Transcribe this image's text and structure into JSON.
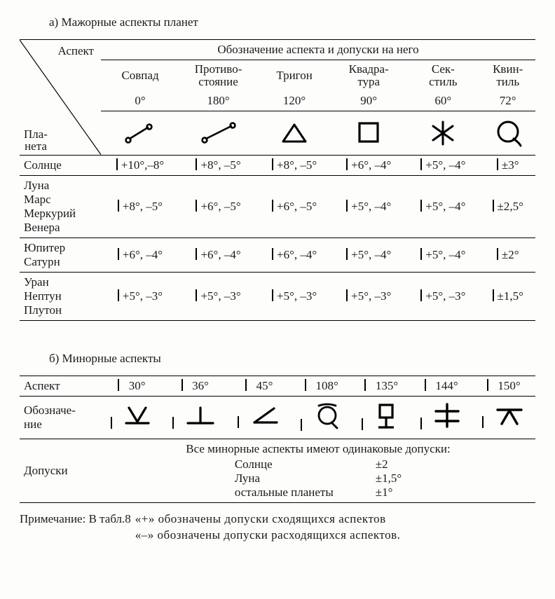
{
  "titles": {
    "a": "а)  Мажорные аспекты планет",
    "b": "б)  Минорные аспекты"
  },
  "major": {
    "corner_top": "Аспект",
    "corner_bottom": "Пла-\nнета",
    "header_span": "Обозначение аспекта и допуски на него",
    "aspects": [
      {
        "name": "Совпад",
        "deg": "0°"
      },
      {
        "name": "Противо-\nстояние",
        "deg": "180°"
      },
      {
        "name": "Тригон",
        "deg": "120°"
      },
      {
        "name": "Квадра-\nтура",
        "deg": "90°"
      },
      {
        "name": "Сек-\nстиль",
        "deg": "60°"
      },
      {
        "name": "Квин-\nтиль",
        "deg": "72°"
      }
    ],
    "rows": [
      {
        "planet": "Солнце",
        "cells": [
          "+10°,–8°",
          "+8°, –5°",
          "+8°, –5°",
          "+6°, –4°",
          "+5°, –4°",
          "±3°"
        ]
      },
      {
        "planet": "Луна\nМарс\nМеркурий\nВенера",
        "cells": [
          "+8°, –5°",
          "+6°, –5°",
          "+6°, –5°",
          "+5°, –4°",
          "+5°, –4°",
          "±2,5°"
        ]
      },
      {
        "planet": "Юпитер\nСатурн",
        "cells": [
          "+6°, –4°",
          "+6°, –4°",
          "+6°, –4°",
          "+5°, –4°",
          "+5°, –4°",
          "±2°"
        ]
      },
      {
        "planet": "Уран\nНептун\nПлутон",
        "cells": [
          "+5°, –3°",
          "+5°, –3°",
          "+5°, –3°",
          "+5°, –3°",
          "+5°, –3°",
          "±1,5°"
        ]
      }
    ]
  },
  "minor": {
    "row_label_aspect": "Аспект",
    "row_label_symbol": "Обозначе-\nние",
    "row_label_tol": "Допуски",
    "degrees": [
      "30°",
      "36°",
      "45°",
      "108°",
      "135°",
      "144°",
      "150°"
    ],
    "tol_caption": "Все минорные аспекты имеют одинаковые допуски:",
    "tol_items": [
      [
        "Солнце",
        "±2"
      ],
      [
        "Луна",
        "±1,5°"
      ],
      [
        "остальные планеты",
        "±1°"
      ]
    ]
  },
  "note": {
    "prefix": "Примечание:  В табл.8",
    "plus": "«+» обозначены допуски сходящихся аспектов",
    "minus": "«–» обозначены допуски расходящихся аспектов."
  }
}
